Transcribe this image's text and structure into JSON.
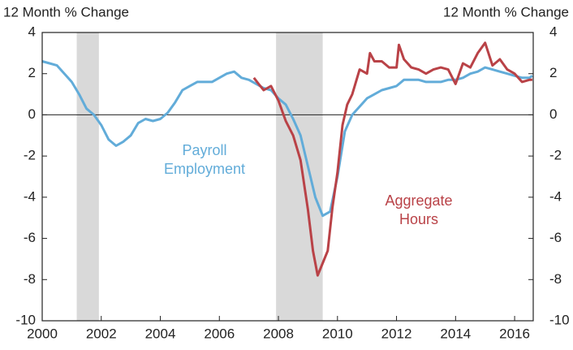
{
  "chart_data": {
    "type": "line",
    "ylabel": "12 Month % Change",
    "y2label": "12 Month % Change",
    "xlim": [
      2000,
      2016.63
    ],
    "xticks": [
      2000,
      2002,
      2004,
      2006,
      2008,
      2010,
      2012,
      2014,
      2016
    ],
    "ylim": [
      -10,
      4
    ],
    "yticks": [
      -10,
      -8,
      -6,
      -4,
      -2,
      0,
      2,
      4
    ],
    "y2lim": [
      -10,
      4
    ],
    "y2ticks": [
      -10,
      -8,
      -6,
      -4,
      -2,
      0,
      2,
      4
    ],
    "shaded_periods": [
      [
        2001.17,
        2001.92
      ],
      [
        2007.92,
        2009.5
      ]
    ],
    "shade_color": "#d9d9d9",
    "series": [
      {
        "name": "Payroll Employment",
        "color": "#62acd9",
        "x": [
          2000,
          2000.25,
          2000.5,
          2000.75,
          2001,
          2001.25,
          2001.5,
          2001.75,
          2002,
          2002.25,
          2002.5,
          2002.75,
          2003,
          2003.25,
          2003.5,
          2003.75,
          2004,
          2004.25,
          2004.5,
          2004.75,
          2005,
          2005.25,
          2005.5,
          2005.75,
          2006,
          2006.25,
          2006.5,
          2006.75,
          2007,
          2007.25,
          2007.5,
          2007.75,
          2008,
          2008.25,
          2008.5,
          2008.75,
          2009,
          2009.25,
          2009.5,
          2009.75,
          2010,
          2010.25,
          2010.5,
          2010.75,
          2011,
          2011.25,
          2011.5,
          2011.75,
          2012,
          2012.25,
          2012.5,
          2012.75,
          2013,
          2013.25,
          2013.5,
          2013.75,
          2014,
          2014.25,
          2014.5,
          2014.75,
          2015,
          2015.25,
          2015.5,
          2015.75,
          2016,
          2016.25,
          2016.5,
          2016.6
        ],
        "values": [
          2.6,
          2.5,
          2.4,
          2.0,
          1.6,
          1.0,
          0.3,
          0.0,
          -0.5,
          -1.2,
          -1.5,
          -1.3,
          -1.0,
          -0.4,
          -0.2,
          -0.3,
          -0.2,
          0.1,
          0.6,
          1.2,
          1.4,
          1.6,
          1.6,
          1.6,
          1.8,
          2.0,
          2.1,
          1.8,
          1.7,
          1.5,
          1.3,
          1.2,
          0.8,
          0.5,
          -0.2,
          -1.0,
          -2.5,
          -4.0,
          -4.9,
          -4.7,
          -3.0,
          -0.8,
          0.0,
          0.4,
          0.8,
          1.0,
          1.2,
          1.3,
          1.4,
          1.7,
          1.7,
          1.7,
          1.6,
          1.6,
          1.6,
          1.7,
          1.7,
          1.8,
          2.0,
          2.1,
          2.3,
          2.2,
          2.1,
          2.0,
          1.9,
          1.8,
          1.8,
          1.9
        ]
      },
      {
        "name": "Aggregate Hours",
        "color": "#b94247",
        "x": [
          2007.17,
          2007.33,
          2007.5,
          2007.75,
          2008,
          2008.25,
          2008.5,
          2008.75,
          2009,
          2009.17,
          2009.33,
          2009.5,
          2009.67,
          2009.83,
          2010,
          2010.17,
          2010.33,
          2010.5,
          2010.75,
          2011,
          2011.1,
          2011.25,
          2011.5,
          2011.75,
          2012,
          2012.08,
          2012.25,
          2012.5,
          2012.75,
          2013,
          2013.25,
          2013.5,
          2013.75,
          2014,
          2014.25,
          2014.5,
          2014.75,
          2015,
          2015.25,
          2015.5,
          2015.75,
          2016,
          2016.25,
          2016.5,
          2016.6
        ],
        "values": [
          1.8,
          1.5,
          1.2,
          1.4,
          0.7,
          -0.3,
          -1.0,
          -2.2,
          -4.6,
          -6.6,
          -7.8,
          -7.2,
          -6.6,
          -4.5,
          -2.8,
          -0.5,
          0.5,
          1.0,
          2.2,
          2.0,
          3.0,
          2.6,
          2.6,
          2.3,
          2.3,
          3.4,
          2.7,
          2.3,
          2.2,
          2.0,
          2.2,
          2.3,
          2.2,
          1.5,
          2.5,
          2.3,
          3.0,
          3.5,
          2.4,
          2.7,
          2.2,
          2.0,
          1.6,
          1.7,
          1.7
        ]
      }
    ]
  }
}
